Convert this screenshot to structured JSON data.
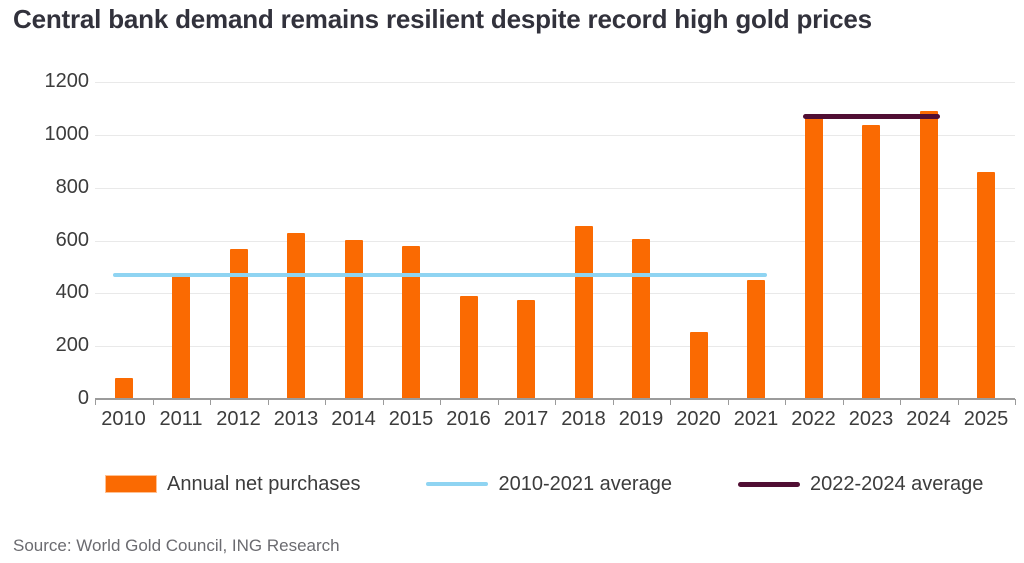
{
  "title": "Central bank demand remains resilient despite record high gold prices",
  "source": "Source: World Gold Council, ING Research",
  "colors": {
    "bar": "#fa6a02",
    "bar_edge": "#ffc091",
    "avg1": "#8fd4f2",
    "avg2": "#500e33",
    "title_text": "#32323c",
    "axis_text": "#3c3c3c",
    "gridline": "#e9e9e9",
    "axis_line": "#9b9b9b",
    "source_text": "#6b6b70"
  },
  "legend": {
    "items": [
      {
        "swatch": "bar",
        "color_key": "bar",
        "label": "Annual net purchases"
      },
      {
        "swatch": "line",
        "color_key": "avg1",
        "label": "2010-2021 average"
      },
      {
        "swatch": "line-thick",
        "color_key": "avg2",
        "label": "2022-2024 average"
      }
    ]
  },
  "chart_data": {
    "type": "bar",
    "title": "Central bank demand remains resilient despite record high gold prices",
    "categories": [
      "2010",
      "2011",
      "2012",
      "2013",
      "2014",
      "2015",
      "2016",
      "2017",
      "2018",
      "2019",
      "2020",
      "2021",
      "2022",
      "2023",
      "2024",
      "2025"
    ],
    "series": [
      {
        "name": "Annual net purchases",
        "values": [
          79,
          465,
          569,
          629,
          601,
          580,
          390,
          375,
          656,
          605,
          255,
          450,
          1080,
          1037,
          1090,
          860
        ]
      }
    ],
    "avg_lines": [
      {
        "name": "2010-2021 average",
        "value": 470,
        "from": "2010",
        "to": "2021",
        "color_key": "avg1",
        "thickness": 4
      },
      {
        "name": "2022-2024 average",
        "value": 1069,
        "from": "2022",
        "to": "2024",
        "color_key": "avg2",
        "thickness": 5
      }
    ],
    "xlabel": "",
    "ylabel": "",
    "ylim": [
      0,
      1200
    ],
    "yticks": [
      0,
      200,
      400,
      600,
      800,
      1000,
      1200
    ],
    "grid": "horizontal",
    "legend_position": "bottom"
  }
}
